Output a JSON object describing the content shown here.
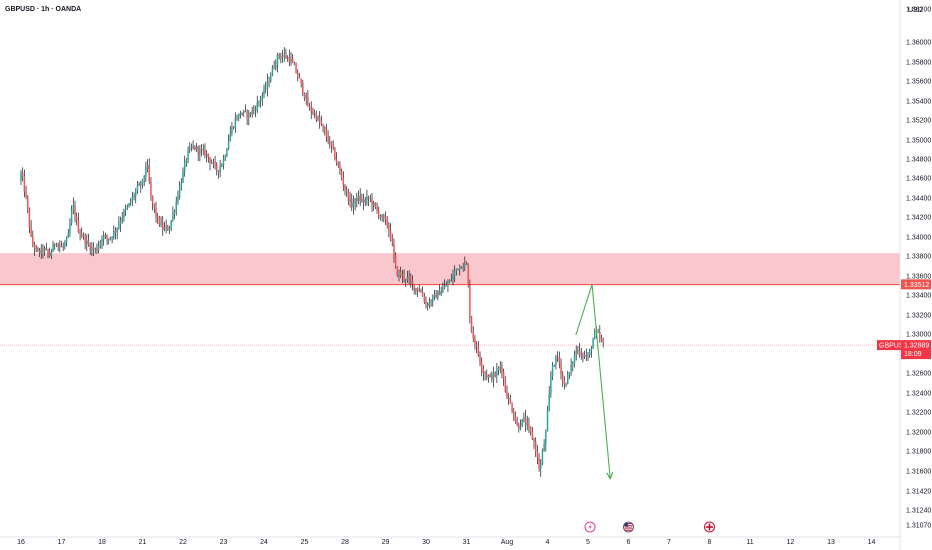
{
  "header": {
    "title": "GBPUSD · 1h · OANDA",
    "currency": "USD"
  },
  "colors": {
    "up": "#26a69a",
    "down": "#ef5350",
    "wick": "#131722",
    "zone_fill": "#f8c8cc",
    "zone_line": "#ef5350",
    "arrow": "#4caf50",
    "tag_bg": "#ef5350",
    "ticker_bg": "#f23645"
  },
  "chart_data": {
    "type": "candlestick",
    "title": "GBPUSD · 1h · OANDA",
    "symbol": "GBPUSD",
    "timeframe": "1h",
    "broker": "OANDA",
    "y_axis": {
      "unit": "USD",
      "ticks": [
        "1.36200",
        "1.36000",
        "1.35800",
        "1.35600",
        "1.35400",
        "1.35200",
        "1.35000",
        "1.34800",
        "1.34600",
        "1.34400",
        "1.34200",
        "1.34000",
        "1.33800",
        "1.33600",
        "1.33400",
        "1.33200",
        "1.33000",
        "1.32800",
        "1.32600",
        "1.32400",
        "1.32200",
        "1.32000",
        "1.31800",
        "1.31600",
        "1.31420",
        "1.31240",
        "1.31070"
      ]
    },
    "x_axis": {
      "ticks": [
        "16",
        "17",
        "18",
        "21",
        "22",
        "23",
        "24",
        "25",
        "28",
        "29",
        "30",
        "31",
        "Aug",
        "4",
        "5",
        "6",
        "7",
        "8",
        "11",
        "12",
        "13",
        "14"
      ]
    },
    "zone": {
      "from": 1.3351,
      "to": 1.3383
    },
    "level": {
      "value": "1.33512",
      "price": 1.33512
    },
    "current": {
      "symbol": "GBPUSD",
      "price": "1.32889",
      "value": 1.32889,
      "countdown": "18:09"
    },
    "projection": [
      {
        "time": 13.7,
        "price": 1.3299
      },
      {
        "time": 14.1,
        "price": 1.3351
      },
      {
        "time": 14.55,
        "price": 1.3153
      }
    ],
    "events": [
      {
        "time": 14.05,
        "icon": "lightning-icon"
      },
      {
        "time": 15.0,
        "icon": "flag-us-icon"
      },
      {
        "time": 17.0,
        "icon": "flag-gb-icon"
      }
    ],
    "path": [
      [
        0.0,
        1.3458
      ],
      [
        0.05,
        1.3466
      ],
      [
        0.18,
        1.3436
      ],
      [
        0.3,
        1.3395
      ],
      [
        0.45,
        1.3383
      ],
      [
        0.6,
        1.3387
      ],
      [
        0.75,
        1.3381
      ],
      [
        0.9,
        1.3396
      ],
      [
        1.05,
        1.3388
      ],
      [
        1.2,
        1.3398
      ],
      [
        1.32,
        1.3433
      ],
      [
        1.45,
        1.3408
      ],
      [
        1.6,
        1.3398
      ],
      [
        1.75,
        1.3389
      ],
      [
        1.9,
        1.3386
      ],
      [
        2.05,
        1.3401
      ],
      [
        2.2,
        1.3398
      ],
      [
        2.38,
        1.3407
      ],
      [
        2.55,
        1.3422
      ],
      [
        2.7,
        1.3432
      ],
      [
        2.88,
        1.3447
      ],
      [
        3.05,
        1.3456
      ],
      [
        3.15,
        1.3476
      ],
      [
        3.25,
        1.344
      ],
      [
        3.4,
        1.3418
      ],
      [
        3.55,
        1.3408
      ],
      [
        3.7,
        1.3409
      ],
      [
        3.85,
        1.3432
      ],
      [
        4.0,
        1.3458
      ],
      [
        4.15,
        1.3486
      ],
      [
        4.3,
        1.3493
      ],
      [
        4.45,
        1.3488
      ],
      [
        4.6,
        1.3486
      ],
      [
        4.75,
        1.3476
      ],
      [
        4.9,
        1.3468
      ],
      [
        5.05,
        1.348
      ],
      [
        5.2,
        1.3506
      ],
      [
        5.35,
        1.3522
      ],
      [
        5.5,
        1.3528
      ],
      [
        5.65,
        1.3525
      ],
      [
        5.8,
        1.3531
      ],
      [
        5.95,
        1.3542
      ],
      [
        6.1,
        1.3554
      ],
      [
        6.25,
        1.3572
      ],
      [
        6.4,
        1.3587
      ],
      [
        6.55,
        1.3586
      ],
      [
        6.7,
        1.3582
      ],
      [
        6.85,
        1.3568
      ],
      [
        7.0,
        1.3551
      ],
      [
        7.15,
        1.3532
      ],
      [
        7.3,
        1.3526
      ],
      [
        7.45,
        1.3515
      ],
      [
        7.6,
        1.3502
      ],
      [
        7.75,
        1.3488
      ],
      [
        7.9,
        1.3468
      ],
      [
        8.05,
        1.3448
      ],
      [
        8.2,
        1.3432
      ],
      [
        8.35,
        1.344
      ],
      [
        8.5,
        1.3436
      ],
      [
        8.65,
        1.344
      ],
      [
        8.8,
        1.3428
      ],
      [
        8.95,
        1.342
      ],
      [
        9.1,
        1.3412
      ],
      [
        9.2,
        1.3394
      ],
      [
        9.3,
        1.3364
      ],
      [
        9.45,
        1.336
      ],
      [
        9.6,
        1.3357
      ],
      [
        9.75,
        1.3348
      ],
      [
        9.9,
        1.3345
      ],
      [
        10.05,
        1.333
      ],
      [
        10.2,
        1.3336
      ],
      [
        10.35,
        1.3342
      ],
      [
        10.5,
        1.3348
      ],
      [
        10.65,
        1.3355
      ],
      [
        10.8,
        1.3368
      ],
      [
        10.95,
        1.3372
      ],
      [
        11.05,
        1.337
      ],
      [
        11.15,
        1.3305
      ],
      [
        11.3,
        1.3285
      ],
      [
        11.45,
        1.3262
      ],
      [
        11.6,
        1.3255
      ],
      [
        11.75,
        1.3258
      ],
      [
        11.9,
        1.3269
      ],
      [
        12.0,
        1.3243
      ],
      [
        12.15,
        1.3225
      ],
      [
        12.3,
        1.3205
      ],
      [
        12.45,
        1.3212
      ],
      [
        12.6,
        1.3201
      ],
      [
        12.72,
        1.3188
      ],
      [
        12.85,
        1.316
      ],
      [
        13.0,
        1.3199
      ],
      [
        13.15,
        1.3268
      ],
      [
        13.3,
        1.3277
      ],
      [
        13.45,
        1.3247
      ],
      [
        13.6,
        1.3262
      ],
      [
        13.75,
        1.3284
      ],
      [
        13.9,
        1.328
      ],
      [
        14.05,
        1.3276
      ],
      [
        14.2,
        1.33
      ],
      [
        14.3,
        1.3299
      ],
      [
        14.4,
        1.3289
      ]
    ]
  }
}
